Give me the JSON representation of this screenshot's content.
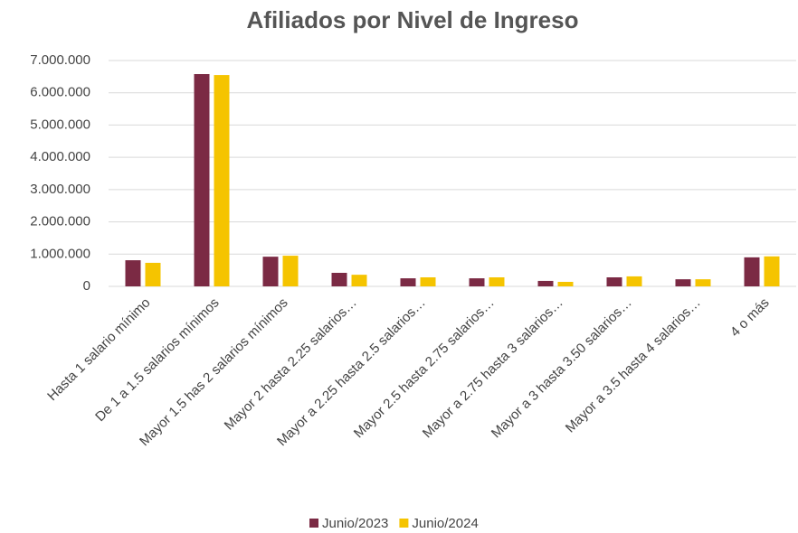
{
  "chart_data": {
    "type": "bar",
    "title": "Afiliados por Nivel de Ingreso",
    "categories": [
      "Hasta 1 salario mínimo",
      "De 1 a 1.5 salarios mínimos",
      "Mayor 1.5 has 2 salarios mínimos",
      "Mayor 2 hasta 2.25 salarios…",
      "Mayor a 2.25 hasta 2.5 salarios…",
      "Mayor 2.5 hasta 2.75 salarios…",
      "Mayor a 2.75 hasta 3 salarios…",
      "Mayor a 3 hasta 3.50 salarios…",
      "Mayor a 3.5 hasta 4 salarios…",
      "4 o más"
    ],
    "series": [
      {
        "name": "Junio/2023",
        "color": "#7b2a44",
        "values": [
          810000,
          6580000,
          920000,
          420000,
          250000,
          250000,
          170000,
          280000,
          220000,
          900000
        ]
      },
      {
        "name": "Junio/2024",
        "color": "#f5c400",
        "values": [
          730000,
          6550000,
          950000,
          360000,
          280000,
          280000,
          140000,
          310000,
          220000,
          930000
        ]
      }
    ],
    "ylim": [
      0,
      7000000
    ],
    "yticks": [
      0,
      {
        "value": 1000000,
        "label": "1.000.000"
      },
      {
        "value": 2000000,
        "label": "2.000.000"
      },
      {
        "value": 3000000,
        "label": "3.000.000"
      },
      {
        "value": 4000000,
        "label": "4.000.000"
      },
      {
        "value": 5000000,
        "label": "5.000.000"
      },
      {
        "value": 6000000,
        "label": "6.000.000"
      },
      {
        "value": 7000000,
        "label": "7.000.000"
      }
    ],
    "grid": true,
    "legend": "bottom"
  }
}
